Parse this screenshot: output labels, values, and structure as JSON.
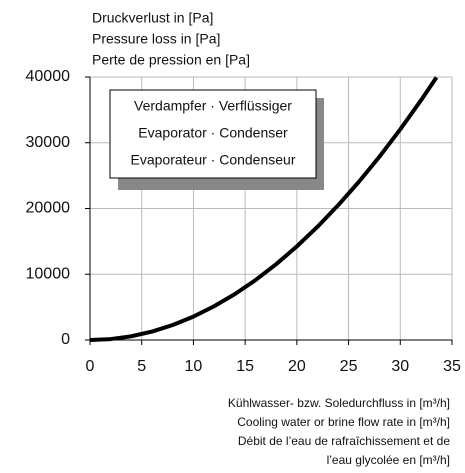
{
  "chart_data": {
    "type": "line",
    "y_label": [
      "Druckverlust in [Pa]",
      "Pressure loss in [Pa]",
      "Perte de pression en [Pa]"
    ],
    "x_label": [
      "Kühlwasser- bzw. Soledurchfluss in [m³/h]",
      "Cooling water or brine flow rate in [m³/h]",
      "Débit de l’eau de rafraîchissement et de",
      "l’eau glycolée en [m³/h]"
    ],
    "annotation": [
      "Verdampfer · Verflüssiger",
      "Evaporator · Condenser",
      "Evaporateur · Condenseur"
    ],
    "x": [
      0,
      2,
      4,
      6,
      8,
      10,
      12,
      14,
      16,
      18,
      20,
      22,
      24,
      26,
      28,
      30,
      32,
      33.5
    ],
    "values": [
      0,
      140,
      570,
      1280,
      2280,
      3560,
      5130,
      6980,
      9110,
      11530,
      14240,
      17230,
      20510,
      24070,
      27910,
      32040,
      36450,
      39950
    ],
    "color": "#000000",
    "xlim": [
      0,
      35
    ],
    "xticks": [
      0,
      5,
      10,
      15,
      20,
      25,
      30,
      35
    ],
    "ylim": [
      0,
      40000
    ],
    "yticks": [
      0,
      10000,
      20000,
      30000,
      40000
    ],
    "grid": true
  }
}
